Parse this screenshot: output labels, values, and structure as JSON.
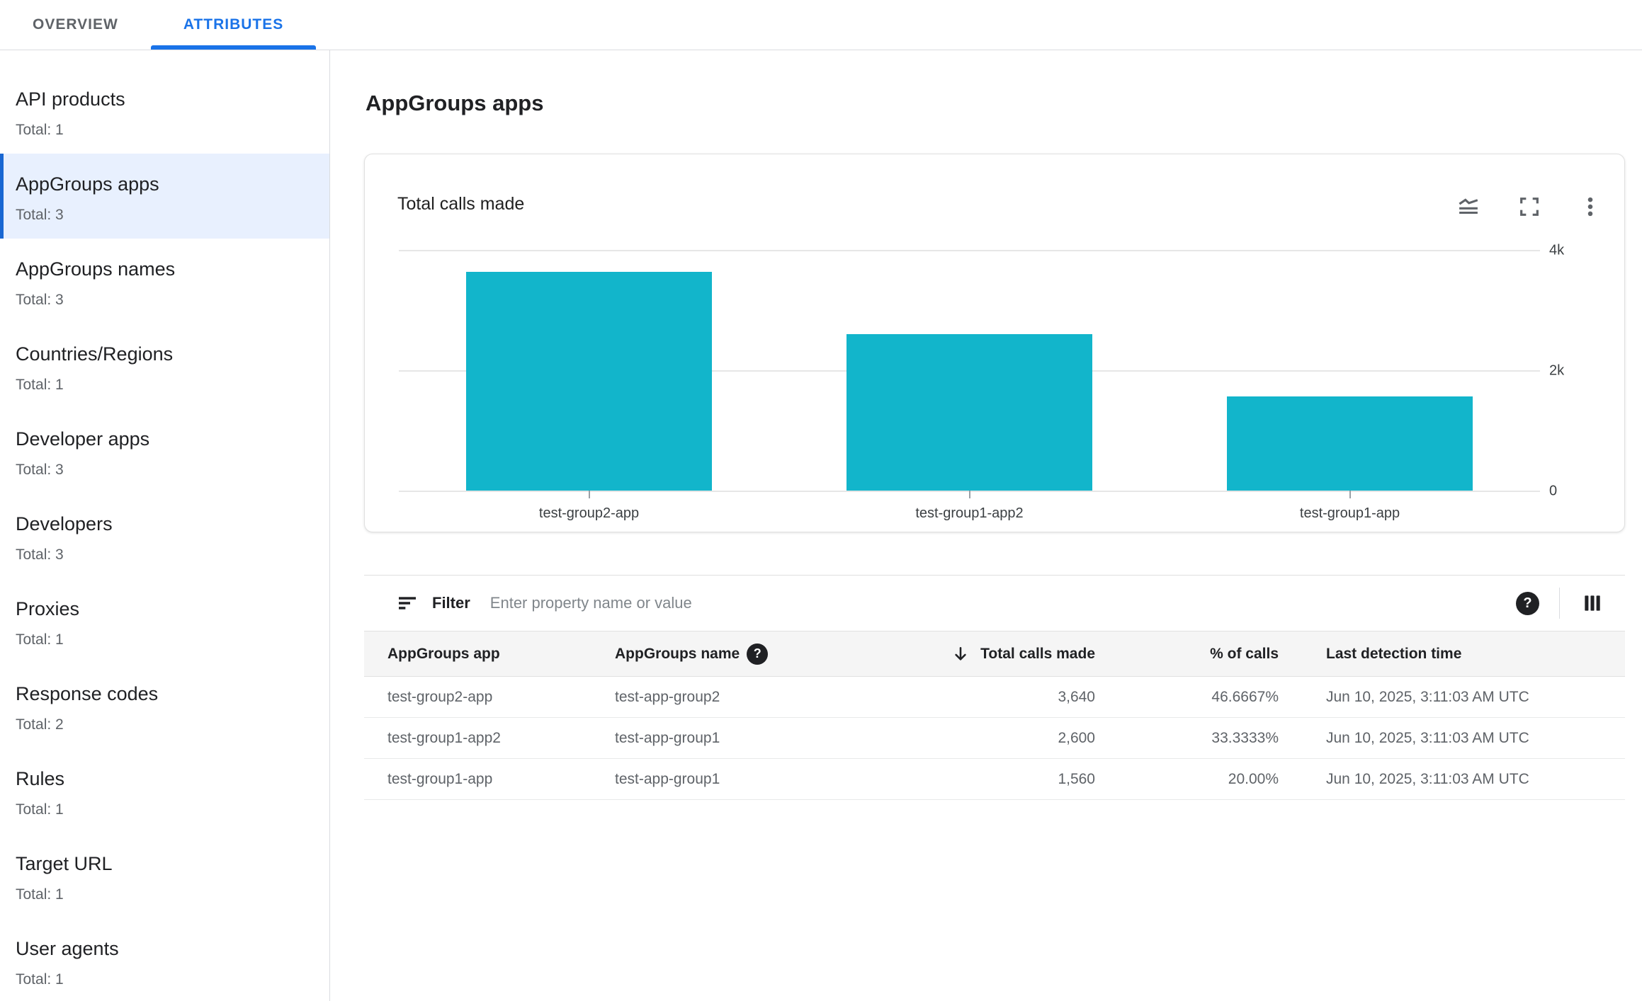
{
  "tabs": [
    {
      "label": "OVERVIEW",
      "active": false
    },
    {
      "label": "ATTRIBUTES",
      "active": true
    }
  ],
  "sidebar": {
    "items": [
      {
        "label": "API products",
        "total": "Total: 1",
        "selected": false
      },
      {
        "label": "AppGroups apps",
        "total": "Total: 3",
        "selected": true
      },
      {
        "label": "AppGroups names",
        "total": "Total: 3",
        "selected": false
      },
      {
        "label": "Countries/Regions",
        "total": "Total: 1",
        "selected": false
      },
      {
        "label": "Developer apps",
        "total": "Total: 3",
        "selected": false
      },
      {
        "label": "Developers",
        "total": "Total: 3",
        "selected": false
      },
      {
        "label": "Proxies",
        "total": "Total: 1",
        "selected": false
      },
      {
        "label": "Response codes",
        "total": "Total: 2",
        "selected": false
      },
      {
        "label": "Rules",
        "total": "Total: 1",
        "selected": false
      },
      {
        "label": "Target URL",
        "total": "Total: 1",
        "selected": false
      },
      {
        "label": "User agents",
        "total": "Total: 1",
        "selected": false
      }
    ]
  },
  "main": {
    "heading": "AppGroups apps"
  },
  "chart_card": {
    "title": "Total calls made",
    "icons": [
      "area-chart-icon",
      "fullscreen-icon",
      "more-options-icon"
    ]
  },
  "chart_data": {
    "type": "bar",
    "title": "Total calls made",
    "categories": [
      "test-group2-app",
      "test-group1-app2",
      "test-group1-app"
    ],
    "values": [
      3640,
      2600,
      1560
    ],
    "xlabel": "",
    "ylabel": "",
    "ylim": [
      0,
      4000
    ],
    "yticks": [
      {
        "value": 0,
        "label": "0"
      },
      {
        "value": 2000,
        "label": "2k"
      },
      {
        "value": 4000,
        "label": "4k"
      }
    ],
    "y_axis_side": "right",
    "grid": true,
    "legend": false,
    "bar_color": "#12b5cb"
  },
  "filter": {
    "label": "Filter",
    "placeholder": "Enter property name or value"
  },
  "table": {
    "columns": [
      {
        "label": "AppGroups app",
        "align": "left"
      },
      {
        "label": "AppGroups name",
        "align": "left",
        "help_icon": true
      },
      {
        "label": "Total calls made",
        "align": "right",
        "sorted": "desc"
      },
      {
        "label": "% of calls",
        "align": "right"
      },
      {
        "label": "Last detection time",
        "align": "left"
      }
    ],
    "rows": [
      {
        "cells": [
          "test-group2-app",
          "test-app-group2",
          "3,640",
          "46.6667%",
          "Jun 10, 2025, 3:11:03 AM UTC"
        ]
      },
      {
        "cells": [
          "test-group1-app2",
          "test-app-group1",
          "2,600",
          "33.3333%",
          "Jun 10, 2025, 3:11:03 AM UTC"
        ]
      },
      {
        "cells": [
          "test-group1-app",
          "test-app-group1",
          "1,560",
          "20.00%",
          "Jun 10, 2025, 3:11:03 AM UTC"
        ]
      }
    ]
  },
  "colors": {
    "accent": "#1a73e8",
    "selected_bg": "#e8f0fe",
    "selected_accent": "#1967d2",
    "bar": "#12b5cb",
    "border": "#dadce0",
    "header_bg": "#f5f5f5",
    "text_dark": "#202124",
    "text_gray": "#5f6368",
    "placeholder": "#80868b"
  }
}
